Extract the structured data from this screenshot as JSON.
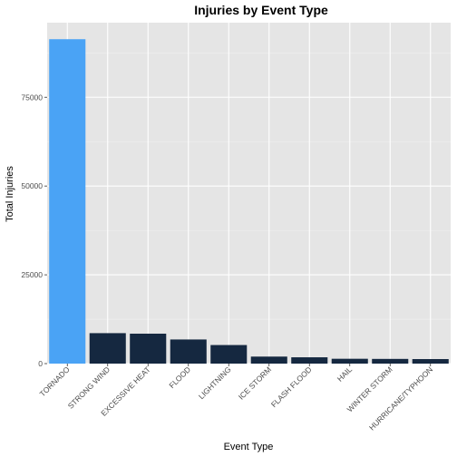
{
  "chart_data": {
    "type": "bar",
    "title": "Injuries by Event Type",
    "xlabel": "Event Type",
    "ylabel": "Total Injuries",
    "categories": [
      "TORNADO",
      "STRONG WIND",
      "EXCESSIVE HEAT",
      "FLOOD",
      "LIGHTNING",
      "ICE STORM",
      "FLASH FLOOD",
      "HAIL",
      "WINTER STORM",
      "HURRICANE/TYPHOON"
    ],
    "values": [
      91346,
      8576,
      8428,
      6791,
      5230,
      1975,
      1777,
      1361,
      1321,
      1275
    ],
    "highlight_index": 0,
    "colors": {
      "highlight": "#4aa3f5",
      "bar": "#152840",
      "panel": "#e5e5e5",
      "grid_major": "#ffffff",
      "grid_minor": "#f0f0f0"
    },
    "yticks": [
      0,
      25000,
      50000,
      75000
    ],
    "ylim": [
      0,
      96000
    ],
    "grid": true,
    "legend": "none"
  }
}
